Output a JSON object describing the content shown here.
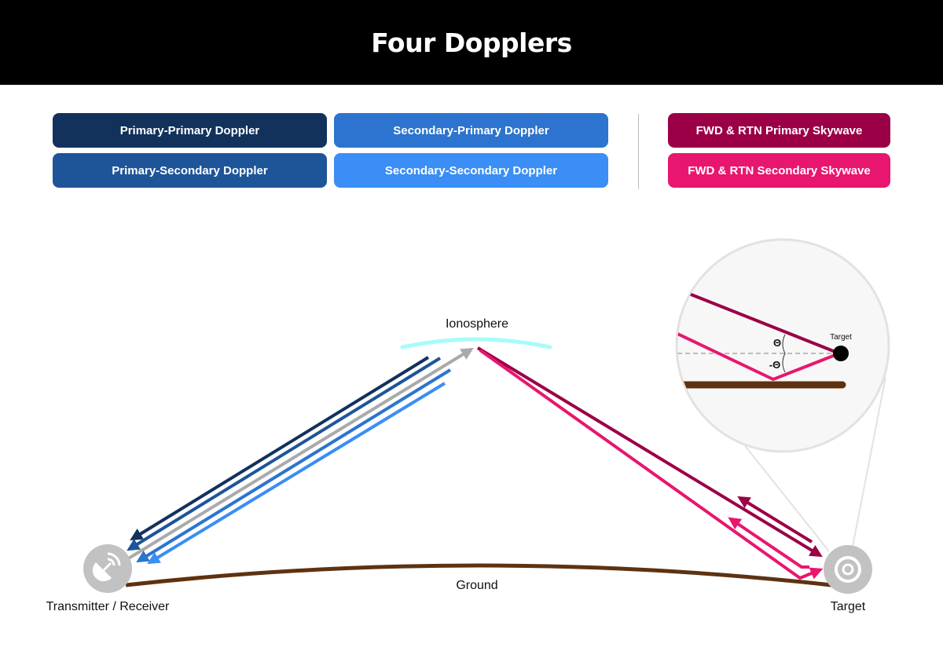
{
  "title": "Four Dopplers",
  "legend": [
    {
      "label": "Primary-Primary Doppler",
      "color": "#12325c"
    },
    {
      "label": "Secondary-Primary Doppler",
      "color": "#2c74cf"
    },
    {
      "label": "Primary-Secondary Doppler",
      "color": "#1e5599"
    },
    {
      "label": "Secondary-Secondary Doppler",
      "color": "#3a8ef5"
    },
    {
      "label": "FWD & RTN Primary Skywave",
      "color": "#9b0047"
    },
    {
      "label": "FWD & RTN Secondary Skywave",
      "color": "#e8166e"
    }
  ],
  "diagram": {
    "ionosphere": "Ionosphere",
    "ground": "Ground",
    "transmitter": "Transmitter / Receiver",
    "target": "Target",
    "inset_target": "Target",
    "theta": "Θ",
    "neg_theta": "-Θ",
    "colors": {
      "ionosphere": "#a8fbfb",
      "ground": "#5e3210",
      "forward": "#aaaaaa",
      "icon": "#c2c2c2"
    }
  }
}
